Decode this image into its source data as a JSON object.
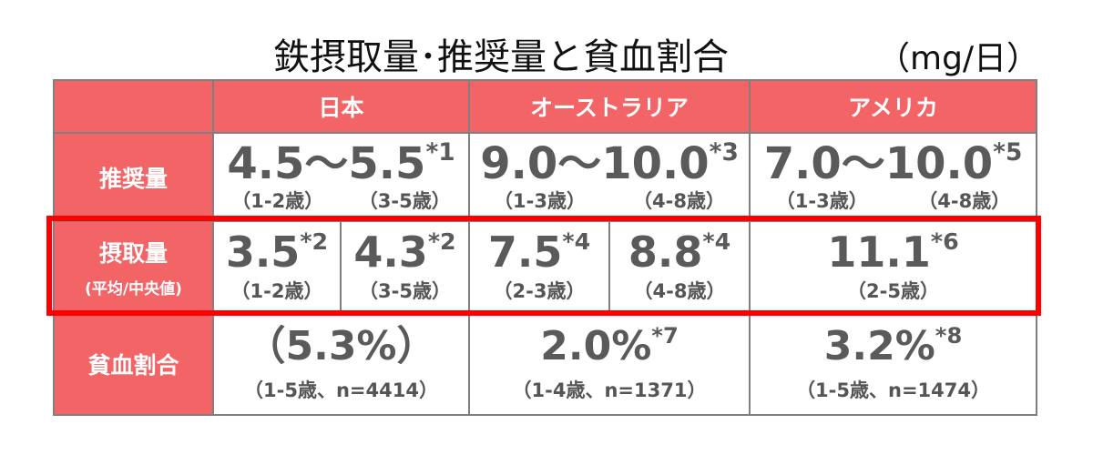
{
  "title": "鉄摂取量･推奨量と貧血割合",
  "unit": "（mg/日）",
  "header": {
    "japan": "日本",
    "australia": "オーストラリア",
    "usa": "アメリカ"
  },
  "row_labels": {
    "recommended": "推奨量",
    "intake": "摂取量",
    "intake_sub": "(平均/中央値)",
    "anemia": "貧血割合"
  },
  "recommended": {
    "japan": {
      "value": "4.5～5.5",
      "note": "*1",
      "ages": [
        "（1-2歳）",
        "（3-5歳）"
      ]
    },
    "australia": {
      "value": "9.0～10.0",
      "note": "*3",
      "ages": [
        "（1-3歳）",
        "（4-8歳）"
      ]
    },
    "usa": {
      "value": "7.0～10.0",
      "note": "*5",
      "ages": [
        "（1-3歳）",
        "（4-8歳）"
      ]
    }
  },
  "intake": {
    "japan": [
      {
        "value": "3.5",
        "note": "*2",
        "age": "（1-2歳）"
      },
      {
        "value": "4.3",
        "note": "*2",
        "age": "（3-5歳）"
      }
    ],
    "australia": [
      {
        "value": "7.5",
        "note": "*4",
        "age": "（2-3歳）"
      },
      {
        "value": "8.8",
        "note": "*4",
        "age": "（4-8歳）"
      }
    ],
    "usa": {
      "value": "11.1",
      "note": "*6",
      "age": "（2-5歳）"
    }
  },
  "anemia": {
    "japan": {
      "value": "（5.3%）",
      "note": "",
      "detail": "（1-5歳、n=4414）"
    },
    "australia": {
      "value": "2.0%",
      "note": "*7",
      "detail": "（1-4歳、n=1371）"
    },
    "usa": {
      "value": "3.2%",
      "note": "*8",
      "detail": "（1-5歳、n=1474）"
    }
  },
  "colors": {
    "header_fill": "#f26466",
    "highlight": "#ff0000",
    "border": "#7f7f7f"
  }
}
